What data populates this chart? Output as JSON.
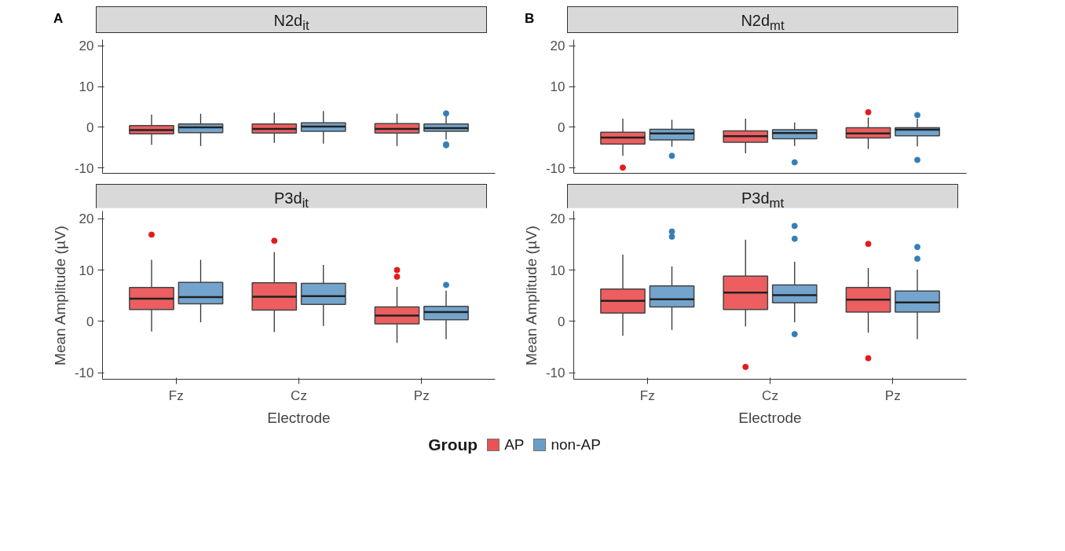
{
  "chart_data": [
    {
      "type": "box",
      "title": "N2d$_{it}$",
      "annotations": [
        "A"
      ],
      "categories": [
        null,
        null,
        null
      ],
      "ylim": [
        -11.3,
        21.5
      ],
      "yticks": [
        -10,
        0,
        10,
        20
      ],
      "tick_labels": "y",
      "grid": false,
      "legend": "bottom",
      "legend_title": "Group",
      "series": [
        {
          "name": "AP",
          "color": "#e41a1c",
          "boxes": [
            {
              "low": -4.3,
              "q1": -1.6,
              "median": -0.7,
              "q3": 0.4,
              "high": 3.1
            },
            {
              "low": -3.8,
              "q1": -1.4,
              "median": -0.4,
              "q3": 0.8,
              "high": 3.6
            },
            {
              "low": -4.6,
              "q1": -1.4,
              "median": -0.4,
              "q3": 0.9,
              "high": 3.3
            }
          ]
        },
        {
          "name": "non-AP",
          "color": "#377eb8",
          "boxes": [
            {
              "low": -4.6,
              "q1": -1.3,
              "median": 0,
              "q3": 0.8,
              "high": 3.3
            },
            {
              "low": -4.0,
              "q1": -1.0,
              "median": 0.2,
              "q3": 1.1,
              "high": 4.0
            },
            {
              "low": -3.0,
              "q1": -1.0,
              "median": -0.2,
              "q3": 0.8,
              "high": 3.0,
              "outliers": [
                3.4,
                -4.2,
                -4.4
              ]
            }
          ]
        }
      ]
    },
    {
      "type": "box",
      "title": "P3d$_{it}$",
      "categories": [
        "Fz",
        "Cz",
        "Pz"
      ],
      "xlabel": "Electrode",
      "ylabel": "Mean Amplitude (µV)",
      "ylim": [
        -11.3,
        21.5
      ],
      "yticks": [
        -10,
        0,
        10,
        20
      ],
      "grid": false,
      "series": [
        {
          "color": "#e41a1c",
          "boxes": [
            {
              "low": -2.0,
              "q1": 2.3,
              "median": 4.4,
              "q3": 6.6,
              "high": 12,
              "outliers": [
                16.9
              ]
            },
            {
              "low": -2.1,
              "q1": 2.2,
              "median": 4.8,
              "q3": 7.5,
              "high": 13.5,
              "outliers": [
                15.7
              ]
            },
            {
              "low": -4.2,
              "q1": -0.5,
              "median": 1.1,
              "q3": 2.8,
              "high": 6.7,
              "outliers": [
                10,
                8.7
              ]
            }
          ]
        },
        {
          "color": "#377eb8",
          "boxes": [
            {
              "low": -0.2,
              "q1": 3.4,
              "median": 4.7,
              "q3": 7.6,
              "high": 12
            },
            {
              "low": -0.9,
              "q1": 3.3,
              "median": 4.9,
              "q3": 7.4,
              "high": 11
            },
            {
              "low": -3.5,
              "q1": 0.3,
              "median": 1.8,
              "q3": 2.9,
              "high": 6,
              "outliers": [
                7.1
              ]
            }
          ]
        }
      ]
    },
    {
      "type": "box",
      "title": "N2d$_{mt}$",
      "annotations": [
        "B"
      ],
      "categories": [
        null,
        null,
        null
      ],
      "ylim": [
        -11.3,
        21.5
      ],
      "yticks": [
        -10,
        0,
        10,
        20
      ],
      "tick_labels": "y",
      "grid": false,
      "series": [
        {
          "color": "#e41a1c",
          "boxes": [
            {
              "low": -7,
              "q1": -4.1,
              "median": -2.5,
              "q3": -1.2,
              "high": 2.1,
              "outliers": [
                -9.9
              ]
            },
            {
              "low": -6.4,
              "q1": -3.7,
              "median": -2.2,
              "q3": -0.9,
              "high": 2.1
            },
            {
              "low": -5.3,
              "q1": -2.6,
              "median": -1.5,
              "q3": -0.1,
              "high": 2.4,
              "outliers": [
                3.7
              ]
            }
          ]
        },
        {
          "color": "#377eb8",
          "boxes": [
            {
              "low": -4.8,
              "q1": -3.1,
              "median": -1.5,
              "q3": -0.5,
              "high": 1.8,
              "outliers": [
                -7
              ]
            },
            {
              "low": -4.6,
              "q1": -2.8,
              "median": -1.4,
              "q3": -0.6,
              "high": 1.2,
              "outliers": [
                -8.6
              ]
            },
            {
              "low": -4.7,
              "q1": -2.1,
              "median": -0.6,
              "q3": -0.1,
              "high": 2.1,
              "outliers": [
                3.0,
                -8
              ]
            }
          ]
        }
      ]
    },
    {
      "type": "box",
      "title": "P3d$_{mt}$",
      "categories": [
        "Fz",
        "Cz",
        "Pz"
      ],
      "xlabel": "Electrode",
      "ylabel": "Mean Amplitude (µV)",
      "ylim": [
        -11.3,
        21.5
      ],
      "yticks": [
        -10,
        0,
        10,
        20
      ],
      "grid": false,
      "series": [
        {
          "color": "#e41a1c",
          "boxes": [
            {
              "low": -2.8,
              "q1": 1.6,
              "median": 4.0,
              "q3": 6.3,
              "high": 13
            },
            {
              "low": -1.0,
              "q1": 2.3,
              "median": 5.6,
              "q3": 8.8,
              "high": 15.9,
              "outliers": [
                -8.9
              ]
            },
            {
              "low": -2.2,
              "q1": 1.8,
              "median": 4.2,
              "q3": 6.6,
              "high": 10.4,
              "outliers": [
                15.1,
                -7.2
              ]
            }
          ]
        },
        {
          "color": "#377eb8",
          "boxes": [
            {
              "low": -1.7,
              "q1": 2.8,
              "median": 4.3,
              "q3": 6.9,
              "high": 10.7,
              "outliers": [
                17.5,
                16.5
              ]
            },
            {
              "low": -0.2,
              "q1": 3.6,
              "median": 5.1,
              "q3": 7.1,
              "high": 11.6,
              "outliers": [
                18.6,
                16.1,
                -2.5
              ]
            },
            {
              "low": -3.5,
              "q1": 1.8,
              "median": 3.7,
              "q3": 5.9,
              "high": 10.1,
              "outliers": [
                14.5,
                12.2
              ]
            }
          ]
        }
      ]
    }
  ]
}
